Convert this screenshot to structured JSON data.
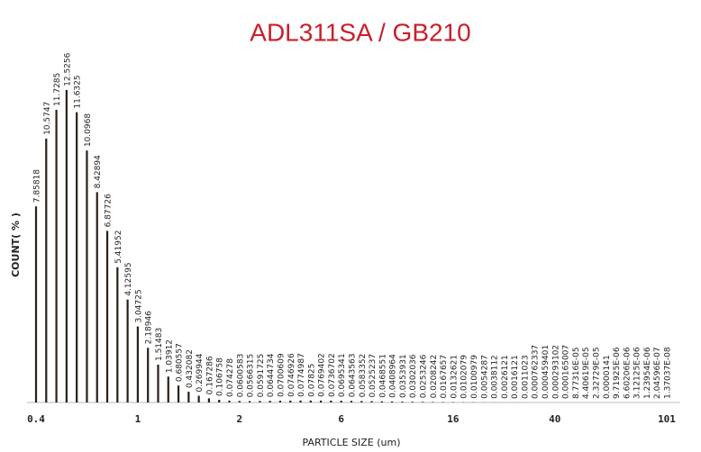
{
  "chart_data": {
    "type": "bar",
    "title": "ADL311SA / GB210",
    "x_label": "PARTICLE SIZE (um)",
    "y_label": "COUNT( % )",
    "color": "#2b2016",
    "ylim": [
      0,
      14
    ],
    "categories": [
      "0.4",
      null,
      null,
      null,
      null,
      null,
      null,
      null,
      null,
      null,
      "1",
      null,
      null,
      null,
      null,
      null,
      null,
      null,
      null,
      null,
      "2",
      null,
      null,
      null,
      null,
      null,
      null,
      null,
      null,
      null,
      "6",
      null,
      null,
      null,
      null,
      null,
      null,
      null,
      null,
      null,
      null,
      "16",
      null,
      null,
      null,
      null,
      null,
      null,
      null,
      null,
      null,
      "40",
      null,
      null,
      null,
      null,
      null,
      null,
      null,
      null,
      null,
      null,
      "101"
    ],
    "values": [
      7.85818,
      10.5747,
      11.7285,
      12.5256,
      11.6325,
      10.0968,
      8.42894,
      6.87726,
      5.41952,
      4.12595,
      3.04725,
      2.18946,
      1.51483,
      1.03912,
      0.680557,
      0.432082,
      0.269944,
      0.167286,
      0.106758,
      0.074278,
      0.0600583,
      0.0566315,
      0.0591725,
      0.0644734,
      0.0700609,
      0.0746926,
      0.0774987,
      0.07825,
      0.0769402,
      0.0736702,
      0.0695341,
      0.0643563,
      0.0583352,
      0.0525237,
      0.0468551,
      0.0408964,
      0.0353931,
      0.0302036,
      0.0253246,
      0.0208242,
      0.0167657,
      0.0132621,
      0.0102079,
      0.0100979,
      0.0054287,
      0.0038112,
      0.0026121,
      0.0016121,
      0.0011023,
      0.000762337,
      0.000459401,
      0.000293102,
      0.000165007,
      8.77316e-05,
      4.40619e-05,
      2.32729e-05,
      1.41e-05,
      9.71925e-06,
      6.60206e-06,
      3.12125e-06,
      1.23954e-06,
      2.04596e-07,
      1.37037e-08
    ],
    "value_labels": [
      "7.85818",
      "10.5747",
      "11.7285",
      "12.5256",
      "11.6325",
      "10.0968",
      "8.42894",
      "6.87726",
      "5.41952",
      "4.12595",
      "3.04725",
      "2.18946",
      "1.51483",
      "1.03912",
      "0.680557",
      "0.432082",
      "0.269944",
      "0.167286",
      "0.106758",
      "0.074278",
      "0.0600583",
      "0.0566315",
      "0.0591725",
      "0.0644734",
      "0.0700609",
      "0.0746926",
      "0.0774987",
      "0.07825",
      "0.0769402",
      "0.0736702",
      "0.0695341",
      "0.0643563",
      "0.0583352",
      "0.0525237",
      "0.0468551",
      "0.0408964",
      "0.0353931",
      "0.0302036",
      "0.0253246",
      "0.0208242",
      "0.0167657",
      "0.0132621",
      "0.0102079",
      "0.0100979",
      "0.0054287",
      "0.0038112",
      "0.0026121",
      "0.0016121",
      "0.0011023",
      "0.000762337",
      "0.000459401",
      "0.000293102",
      "0.000165007",
      "8.77316E-05",
      "4.40619E-05",
      "2.32729E-05",
      "0.0000141",
      "9.71925E-06",
      "6.60206E-06",
      "3.12125E-06",
      "1.23954E-06",
      "2.04596E-07",
      "1.37037E-08"
    ]
  }
}
